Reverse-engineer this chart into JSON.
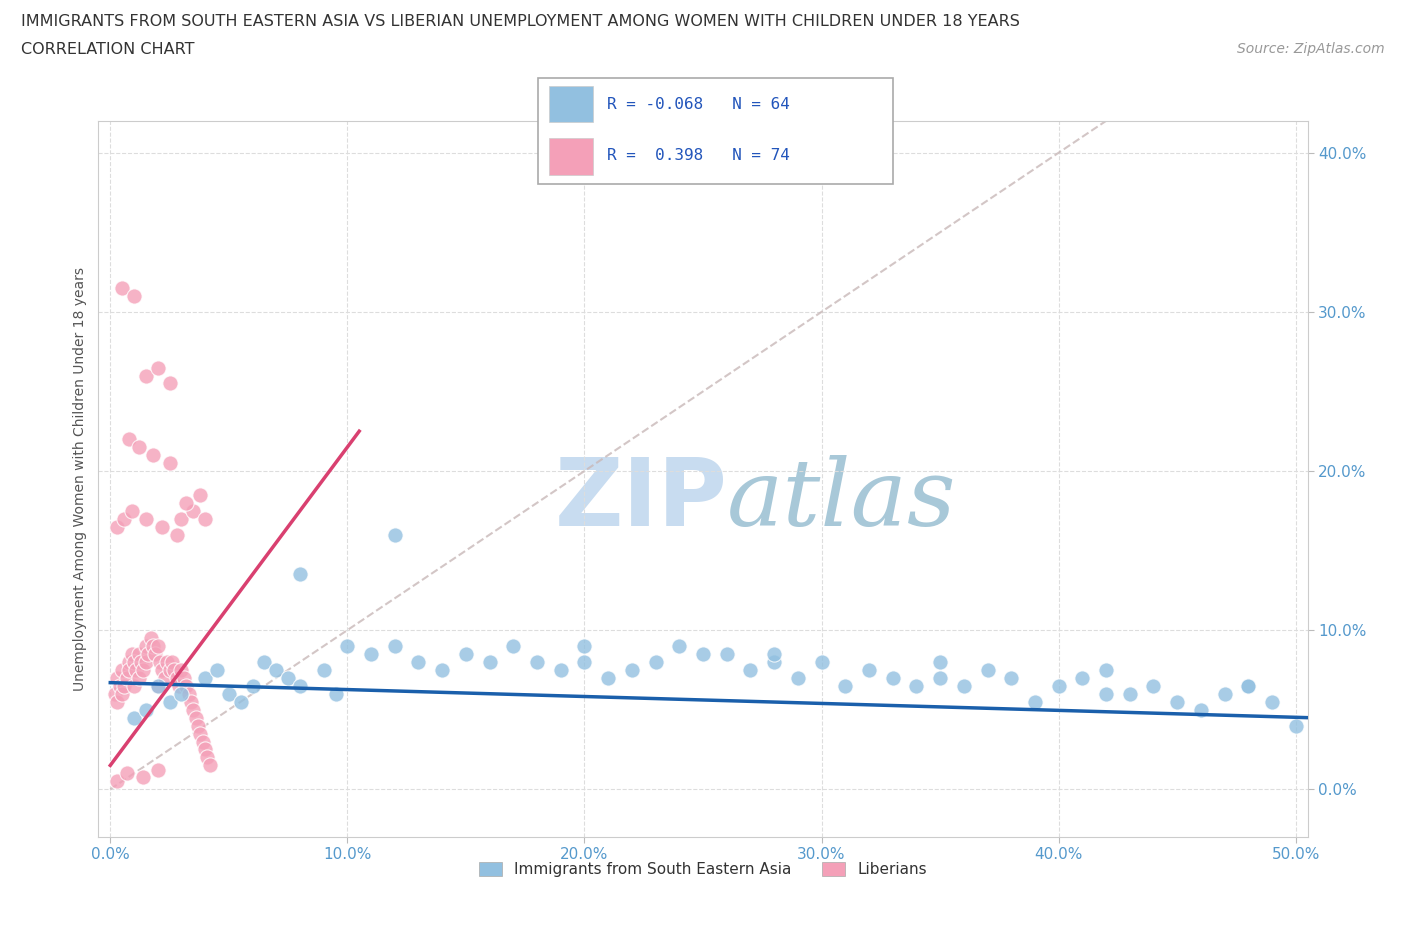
{
  "title_line1": "IMMIGRANTS FROM SOUTH EASTERN ASIA VS LIBERIAN UNEMPLOYMENT AMONG WOMEN WITH CHILDREN UNDER 18 YEARS",
  "title_line2": "CORRELATION CHART",
  "source_text": "Source: ZipAtlas.com",
  "ylabel": "Unemployment Among Women with Children Under 18 years",
  "xlim": [
    -0.005,
    0.505
  ],
  "ylim": [
    -0.03,
    0.42
  ],
  "xticks": [
    0.0,
    0.1,
    0.2,
    0.3,
    0.4,
    0.5
  ],
  "yticks": [
    0.0,
    0.1,
    0.2,
    0.3,
    0.4
  ],
  "xtick_labels": [
    "0.0%",
    "10.0%",
    "20.0%",
    "30.0%",
    "40.0%",
    "50.0%"
  ],
  "ytick_labels": [
    "0.0%",
    "10.0%",
    "20.0%",
    "30.0%",
    "40.0%"
  ],
  "blue_color": "#92C0E0",
  "pink_color": "#F4A0B8",
  "blue_line_color": "#1A5FAB",
  "pink_line_color": "#D94070",
  "diagonal_color": "#C8B8B8",
  "watermark_color": "#C8DCF0",
  "legend_R_blue": "-0.068",
  "legend_N_blue": "64",
  "legend_R_pink": "0.398",
  "legend_N_pink": "74",
  "background_color": "#FFFFFF",
  "grid_color": "#DDDDDD",
  "tick_color": "#5599CC",
  "title_color": "#333333",
  "ylabel_color": "#555555",
  "source_color": "#999999",
  "legend_text_color": "#2255BB"
}
